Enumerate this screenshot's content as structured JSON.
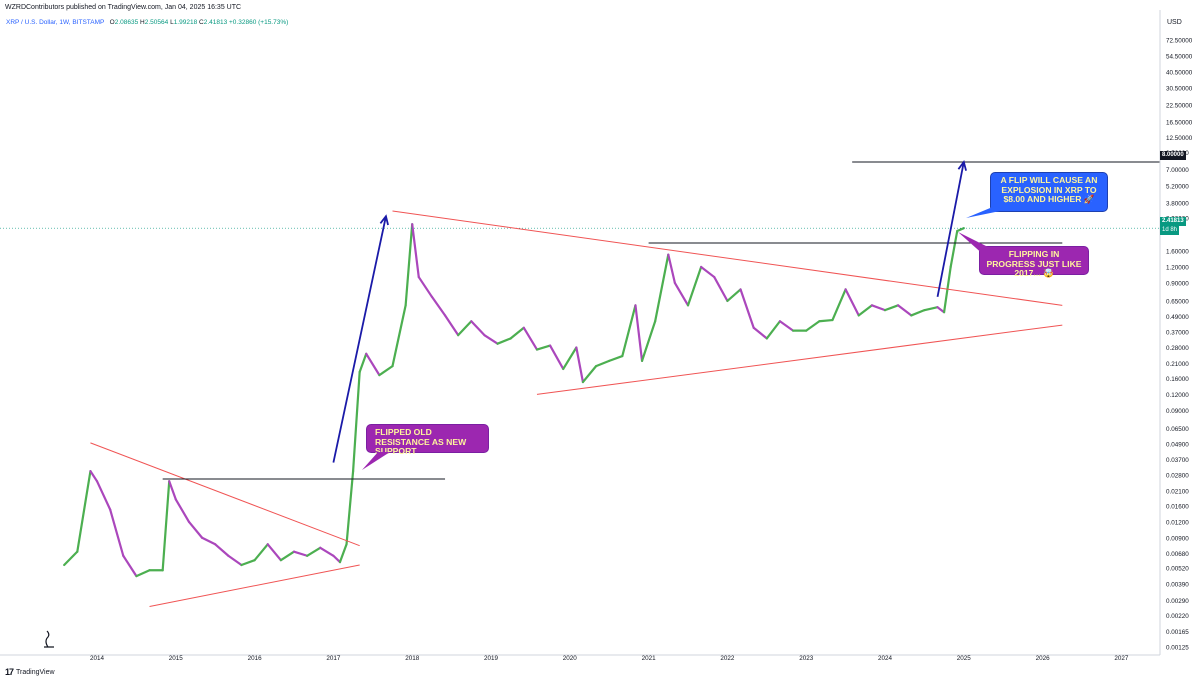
{
  "header": {
    "attribution": "WZRDContributors published on TradingView.com, Jan 04, 2025 16:35 UTC",
    "symbol": "XRP / U.S. Dollar, 1W, BITSTAMP",
    "ohlc": [
      {
        "key": "O",
        "value": "2.08635"
      },
      {
        "key": "H",
        "value": "2.50564"
      },
      {
        "key": "L",
        "value": "1.99218"
      },
      {
        "key": "C",
        "value": "2.41813"
      }
    ],
    "change": "+0.32860 (+15.73%)"
  },
  "axis": {
    "currency": "USD",
    "price_labels": [
      "72.50000",
      "54.50000",
      "40.50000",
      "30.50000",
      "22.50000",
      "16.50000",
      "12.50000",
      "9.50000",
      "7.00000",
      "5.20000",
      "3.80000",
      "2.90000",
      "1.60000",
      "1.20000",
      "0.90000",
      "0.65000",
      "0.49000",
      "0.37000",
      "0.28000",
      "0.21000",
      "0.16000",
      "0.12000",
      "0.09000",
      "0.06500",
      "0.04900",
      "0.03700",
      "0.02800",
      "0.02100",
      "0.01600",
      "0.01200",
      "0.00900",
      "0.00680",
      "0.00520",
      "0.00390",
      "0.00290",
      "0.00220",
      "0.00165",
      "0.00125"
    ],
    "years": [
      "2014",
      "2015",
      "2016",
      "2017",
      "2018",
      "2019",
      "2020",
      "2021",
      "2022",
      "2023",
      "2024",
      "2025",
      "2026",
      "2027"
    ],
    "target_label": "8.00000",
    "current_label": "2.41813",
    "countdown_label": "1d 8h"
  },
  "annotations": {
    "flipped": "FLIPPED OLD RESISTANCE AS NEW SUPPORT",
    "flip_explosion": "A FLIP WILL CAUSE AN EXPLOSION IN XRP TO $8.00 AND HIGHER 🚀",
    "flipping": "FLIPPING IN PROGRESS JUST LIKE 2017... 🤯"
  },
  "branding": {
    "name": "TradingView",
    "mark": "17"
  },
  "colors": {
    "up": "#26a69a",
    "up_alt": "#4caf50",
    "down": "#ab47bc",
    "trend_line": "#f05454",
    "level_line": "#131722",
    "arrow": "#1a1aa8",
    "accent": "#2962ff",
    "annotation_purple": "#9c27b0",
    "annotation_text": "#fff59d"
  },
  "chart_data": {
    "type": "candlestick-line",
    "scale": "log",
    "ylim": [
      0.00125,
      72.5
    ],
    "x_range": [
      "2013-08",
      "2027-12"
    ],
    "series": [
      {
        "name": "XRP / U.S. Dollar",
        "points": [
          [
            "2013-08",
            0.0055
          ],
          [
            "2013-10",
            0.007
          ],
          [
            "2013-12",
            0.03
          ],
          [
            "2014-01",
            0.025
          ],
          [
            "2014-03",
            0.015
          ],
          [
            "2014-05",
            0.0065
          ],
          [
            "2014-07",
            0.0045
          ],
          [
            "2014-09",
            0.005
          ],
          [
            "2014-11",
            0.005
          ],
          [
            "2014-12",
            0.025
          ],
          [
            "2015-01",
            0.018
          ],
          [
            "2015-03",
            0.012
          ],
          [
            "2015-05",
            0.009
          ],
          [
            "2015-07",
            0.008
          ],
          [
            "2015-09",
            0.0065
          ],
          [
            "2015-11",
            0.0055
          ],
          [
            "2016-01",
            0.006
          ],
          [
            "2016-03",
            0.008
          ],
          [
            "2016-05",
            0.006
          ],
          [
            "2016-07",
            0.007
          ],
          [
            "2016-09",
            0.0065
          ],
          [
            "2016-11",
            0.0075
          ],
          [
            "2017-01",
            0.0065
          ],
          [
            "2017-02",
            0.0058
          ],
          [
            "2017-03",
            0.008
          ],
          [
            "2017-04",
            0.03
          ],
          [
            "2017-05",
            0.18
          ],
          [
            "2017-06",
            0.25
          ],
          [
            "2017-08",
            0.17
          ],
          [
            "2017-10",
            0.2
          ],
          [
            "2017-12",
            0.6
          ],
          [
            "2018-01",
            2.6
          ],
          [
            "2018-02",
            1.0
          ],
          [
            "2018-04",
            0.7
          ],
          [
            "2018-06",
            0.5
          ],
          [
            "2018-08",
            0.35
          ],
          [
            "2018-10",
            0.45
          ],
          [
            "2018-12",
            0.35
          ],
          [
            "2019-02",
            0.3
          ],
          [
            "2019-04",
            0.33
          ],
          [
            "2019-06",
            0.4
          ],
          [
            "2019-08",
            0.27
          ],
          [
            "2019-10",
            0.29
          ],
          [
            "2019-12",
            0.19
          ],
          [
            "2020-02",
            0.28
          ],
          [
            "2020-03",
            0.15
          ],
          [
            "2020-05",
            0.2
          ],
          [
            "2020-07",
            0.22
          ],
          [
            "2020-09",
            0.24
          ],
          [
            "2020-11",
            0.6
          ],
          [
            "2020-12",
            0.22
          ],
          [
            "2021-02",
            0.45
          ],
          [
            "2021-04",
            1.5
          ],
          [
            "2021-05",
            0.9
          ],
          [
            "2021-07",
            0.6
          ],
          [
            "2021-09",
            1.2
          ],
          [
            "2021-11",
            1.0
          ],
          [
            "2022-01",
            0.65
          ],
          [
            "2022-03",
            0.8
          ],
          [
            "2022-05",
            0.4
          ],
          [
            "2022-07",
            0.33
          ],
          [
            "2022-09",
            0.45
          ],
          [
            "2022-11",
            0.38
          ],
          [
            "2023-01",
            0.38
          ],
          [
            "2023-03",
            0.45
          ],
          [
            "2023-05",
            0.46
          ],
          [
            "2023-07",
            0.8
          ],
          [
            "2023-09",
            0.5
          ],
          [
            "2023-11",
            0.6
          ],
          [
            "2024-01",
            0.55
          ],
          [
            "2024-03",
            0.6
          ],
          [
            "2024-05",
            0.5
          ],
          [
            "2024-07",
            0.55
          ],
          [
            "2024-09",
            0.58
          ],
          [
            "2024-10",
            0.53
          ],
          [
            "2024-11",
            1.2
          ],
          [
            "2024-12",
            2.3
          ],
          [
            "2025-01",
            2.41813
          ]
        ]
      }
    ],
    "trend_lines": [
      {
        "name": "2013-2017 resistance",
        "from": [
          "2013-12",
          0.05
        ],
        "to": [
          "2017-05",
          0.0078
        ]
      },
      {
        "name": "2014-2017 support",
        "from": [
          "2014-09",
          0.0026
        ],
        "to": [
          "2017-05",
          0.0055
        ]
      },
      {
        "name": "2018-2025 resistance",
        "from": [
          "2017-10",
          3.3
        ],
        "to": [
          "2026-04",
          0.6
        ]
      },
      {
        "name": "2019-2025 support",
        "from": [
          "2019-08",
          0.12
        ],
        "to": [
          "2026-04",
          0.42
        ]
      }
    ],
    "horizontal_levels": [
      {
        "value": 0.026,
        "from": "2014-11",
        "to": "2018-06"
      },
      {
        "value": 1.85,
        "from": "2021-01",
        "to": "2026-04"
      },
      {
        "value": 8.0,
        "from": "2023-08",
        "to": "2027-12",
        "label": "8.00000"
      }
    ],
    "arrows": [
      {
        "from": [
          "2017-01",
          0.035
        ],
        "to": [
          "2017-09",
          3.0
        ]
      },
      {
        "from": [
          "2024-09",
          0.7
        ],
        "to": [
          "2025-01",
          8.0
        ]
      }
    ]
  }
}
